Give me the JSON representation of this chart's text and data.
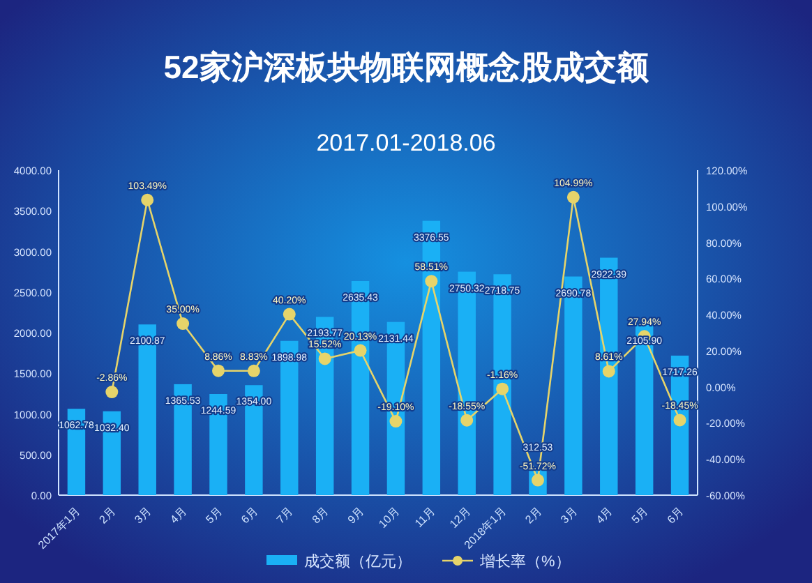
{
  "chart_data": {
    "type": "bar",
    "title": "52家沪深板块物联网概念股成交额",
    "subtitle": "2017.01-2018.06",
    "categories": [
      "2017年1月",
      "2月",
      "3月",
      "4月",
      "5月",
      "6月",
      "7月",
      "8月",
      "9月",
      "10月",
      "11月",
      "12月",
      "2018年1月",
      "2月",
      "3月",
      "4月",
      "5月",
      "6月"
    ],
    "series": [
      {
        "name": "成交额（亿元）",
        "color": "#1ab0f5",
        "values": [
          1062.78,
          1032.4,
          2100.87,
          1365.53,
          1244.59,
          1354.0,
          1898.98,
          2193.77,
          2635.43,
          2131.44,
          3376.55,
          2750.32,
          2718.75,
          312.53,
          2690.78,
          2922.39,
          2105.9,
          1717.26
        ],
        "value_labels": [
          "1062.78",
          "1032.40",
          "2100.87",
          "1365.53",
          "1244.59",
          "1354.00",
          "1898.98",
          "2193.77",
          "2635.43",
          "2131.44",
          "3376.55",
          "2750.32",
          "2718.75",
          "312.53",
          "2690.78",
          "2922.39",
          "2105.90",
          "1717.26"
        ]
      },
      {
        "name": "增长率（%）",
        "type": "line",
        "axis": "y2",
        "color": "#e6d46a",
        "marker": "circle",
        "values": [
          null,
          -2.86,
          103.49,
          35.0,
          8.86,
          8.83,
          40.2,
          15.52,
          20.13,
          -19.1,
          58.51,
          -18.55,
          -1.16,
          -51.72,
          104.99,
          8.61,
          27.94,
          -18.45
        ],
        "value_labels": [
          null,
          "-2.86%",
          "103.49%",
          "35.00%",
          "8.86%",
          "8.83%",
          "40.20%",
          "15.52%",
          "20.13%",
          "-19.10%",
          "58.51%",
          "-18.55%",
          "-1.16%",
          "-51.72%",
          "104.99%",
          "8.61%",
          "27.94%",
          "-18.45%"
        ]
      }
    ],
    "ylim": [
      0,
      4000
    ],
    "yticks": [
      {
        "value": 0,
        "label": "0.00"
      },
      {
        "value": 500,
        "label": "500.00"
      },
      {
        "value": 1000,
        "label": "1000.00"
      },
      {
        "value": 1500,
        "label": "1500.00"
      },
      {
        "value": 2000,
        "label": "2000.00"
      },
      {
        "value": 2500,
        "label": "2500.00"
      },
      {
        "value": 3000,
        "label": "3000.00"
      },
      {
        "value": 3500,
        "label": "3500.00"
      },
      {
        "value": 4000,
        "label": "4000.00"
      }
    ],
    "y2lim": [
      -60,
      120
    ],
    "y2ticks": [
      {
        "value": -60,
        "label": "-60.00%"
      },
      {
        "value": -40,
        "label": "-40.00%"
      },
      {
        "value": -20,
        "label": "-20.00%"
      },
      {
        "value": 0,
        "label": "0.00%"
      },
      {
        "value": 20,
        "label": "20.00%"
      },
      {
        "value": 40,
        "label": "40.00%"
      },
      {
        "value": 60,
        "label": "60.00%"
      },
      {
        "value": 80,
        "label": "80.00%"
      },
      {
        "value": 100,
        "label": "100.00%"
      },
      {
        "value": 120,
        "label": "120.00%"
      }
    ],
    "legend": "bottom",
    "grid": false
  }
}
